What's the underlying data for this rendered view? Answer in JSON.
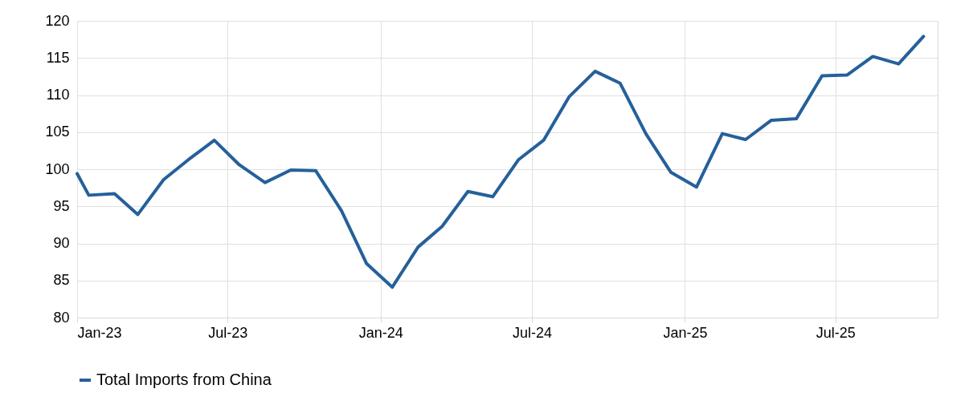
{
  "chart_data": {
    "type": "line",
    "x": [
      "2023-01-01",
      "2023-01-15",
      "2023-02-15",
      "2023-03-15",
      "2023-04-15",
      "2023-05-15",
      "2023-06-15",
      "2023-07-15",
      "2023-08-15",
      "2023-09-15",
      "2023-10-15",
      "2023-11-15",
      "2023-12-15",
      "2024-01-15",
      "2024-02-15",
      "2024-03-15",
      "2024-04-15",
      "2024-05-15",
      "2024-06-15",
      "2024-07-15",
      "2024-08-15",
      "2024-09-15",
      "2024-10-15",
      "2024-11-15",
      "2024-12-15",
      "2025-01-15",
      "2025-02-15",
      "2025-03-15",
      "2025-04-15",
      "2025-05-15",
      "2025-06-15",
      "2025-07-15",
      "2025-08-15",
      "2025-09-15",
      "2025-10-15"
    ],
    "series": [
      {
        "name": "Total Imports from China",
        "color": "#25609a",
        "values": [
          99.4,
          96.5,
          96.7,
          93.9,
          98.6,
          101.3,
          103.9,
          100.6,
          98.2,
          99.9,
          99.8,
          94.4,
          87.3,
          84.1,
          89.5,
          92.3,
          97.0,
          96.3,
          101.3,
          103.9,
          109.8,
          113.2,
          111.6,
          104.8,
          99.6,
          97.6,
          104.8,
          104.0,
          106.6,
          106.8,
          112.6,
          112.7,
          115.2,
          114.2,
          117.9
        ]
      }
    ],
    "xlim": [
      "2023-01-01",
      "2025-11-01"
    ],
    "xticks": [
      {
        "value": "2023-01",
        "label": "Jan-23"
      },
      {
        "value": "2023-07",
        "label": "Jul-23"
      },
      {
        "value": "2024-01",
        "label": "Jan-24"
      },
      {
        "value": "2024-07",
        "label": "Jul-24"
      },
      {
        "value": "2025-01",
        "label": "Jan-25"
      },
      {
        "value": "2025-07",
        "label": "Jul-25"
      }
    ],
    "ylim": [
      80,
      120
    ],
    "yticks": [
      80,
      85,
      90,
      95,
      100,
      105,
      110,
      115,
      120
    ],
    "grid": true,
    "legend": "bottom",
    "line_style": "solid",
    "marker": "none"
  }
}
